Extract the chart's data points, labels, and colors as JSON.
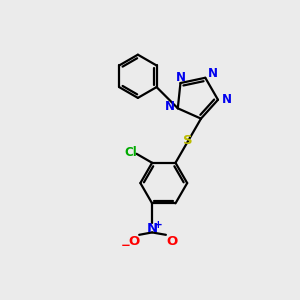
{
  "background_color": "#ebebeb",
  "bond_color": "#000000",
  "n_color": "#0000ee",
  "s_color": "#bbbb00",
  "cl_color": "#00aa00",
  "o_color": "#ff0000",
  "figsize": [
    3.0,
    3.0
  ],
  "dpi": 100,
  "lw": 1.6,
  "fs": 8.5,
  "xlim": [
    0,
    10
  ],
  "ylim": [
    0,
    10
  ]
}
